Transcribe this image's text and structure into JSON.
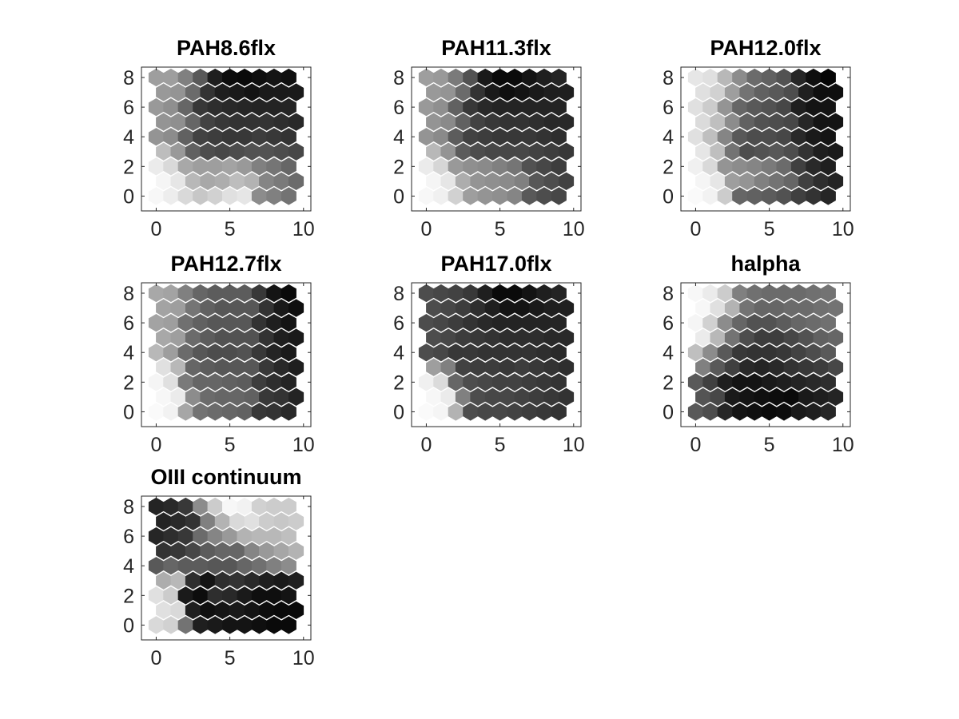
{
  "chart_data": [
    {
      "type": "heatmap",
      "title": "PAH8.6flx",
      "xlabel": "",
      "ylabel": "",
      "xlim": [
        -1,
        10.5
      ],
      "ylim": [
        -1,
        8.7
      ],
      "xticks": [
        0,
        5,
        10
      ],
      "yticks": [
        0,
        2,
        4,
        6,
        8
      ],
      "grid": false,
      "rows": 9,
      "cols": 10,
      "value_range": [
        0,
        1
      ],
      "values": [
        [
          0.97,
          0.93,
          0.85,
          0.78,
          0.82,
          0.88,
          0.9,
          0.55,
          0.5,
          0.45
        ],
        [
          0.96,
          0.9,
          0.72,
          0.66,
          0.68,
          0.74,
          0.7,
          0.52,
          0.48,
          0.42
        ],
        [
          0.92,
          0.85,
          0.66,
          0.62,
          0.62,
          0.64,
          0.6,
          0.5,
          0.46,
          0.4
        ],
        [
          0.74,
          0.6,
          0.38,
          0.3,
          0.28,
          0.3,
          0.32,
          0.32,
          0.3,
          0.28
        ],
        [
          0.58,
          0.55,
          0.38,
          0.26,
          0.24,
          0.22,
          0.22,
          0.24,
          0.22,
          0.2
        ],
        [
          0.58,
          0.56,
          0.4,
          0.26,
          0.22,
          0.2,
          0.2,
          0.2,
          0.18,
          0.16
        ],
        [
          0.6,
          0.56,
          0.4,
          0.22,
          0.18,
          0.16,
          0.15,
          0.14,
          0.14,
          0.14
        ],
        [
          0.6,
          0.58,
          0.42,
          0.2,
          0.12,
          0.1,
          0.08,
          0.1,
          0.1,
          0.1
        ],
        [
          0.62,
          0.62,
          0.5,
          0.35,
          0.12,
          0.05,
          0.04,
          0.06,
          0.08,
          0.06
        ]
      ]
    },
    {
      "type": "heatmap",
      "title": "PAH11.3flx",
      "xlabel": "",
      "ylabel": "",
      "xlim": [
        -1,
        10.5
      ],
      "ylim": [
        -1,
        8.7
      ],
      "xticks": [
        0,
        5,
        10
      ],
      "yticks": [
        0,
        2,
        4,
        6,
        8
      ],
      "grid": false,
      "rows": 9,
      "cols": 10,
      "value_range": [
        0,
        1
      ],
      "values": [
        [
          0.97,
          0.94,
          0.82,
          0.62,
          0.58,
          0.56,
          0.52,
          0.35,
          0.3,
          0.28
        ],
        [
          0.96,
          0.9,
          0.68,
          0.58,
          0.56,
          0.54,
          0.5,
          0.34,
          0.3,
          0.26
        ],
        [
          0.92,
          0.84,
          0.6,
          0.56,
          0.54,
          0.5,
          0.46,
          0.32,
          0.28,
          0.24
        ],
        [
          0.72,
          0.58,
          0.36,
          0.3,
          0.28,
          0.28,
          0.28,
          0.26,
          0.24,
          0.22
        ],
        [
          0.58,
          0.54,
          0.36,
          0.26,
          0.24,
          0.22,
          0.22,
          0.22,
          0.2,
          0.18
        ],
        [
          0.58,
          0.54,
          0.38,
          0.26,
          0.22,
          0.2,
          0.2,
          0.18,
          0.16,
          0.16
        ],
        [
          0.6,
          0.56,
          0.38,
          0.22,
          0.16,
          0.14,
          0.14,
          0.14,
          0.14,
          0.14
        ],
        [
          0.6,
          0.58,
          0.42,
          0.2,
          0.1,
          0.06,
          0.08,
          0.1,
          0.12,
          0.12
        ],
        [
          0.62,
          0.6,
          0.48,
          0.32,
          0.1,
          0.04,
          0.04,
          0.08,
          0.12,
          0.14
        ]
      ]
    },
    {
      "type": "heatmap",
      "title": "PAH12.0flx",
      "xlabel": "",
      "ylabel": "",
      "xlim": [
        -1,
        10.5
      ],
      "ylim": [
        -1,
        8.7
      ],
      "xticks": [
        0,
        5,
        10
      ],
      "yticks": [
        0,
        2,
        4,
        6,
        8
      ],
      "grid": false,
      "rows": 9,
      "cols": 10,
      "value_range": [
        0,
        1
      ],
      "values": [
        [
          0.98,
          0.95,
          0.8,
          0.4,
          0.38,
          0.36,
          0.32,
          0.25,
          0.2,
          0.15
        ],
        [
          0.96,
          0.9,
          0.62,
          0.58,
          0.5,
          0.45,
          0.4,
          0.25,
          0.18,
          0.14
        ],
        [
          0.94,
          0.85,
          0.58,
          0.55,
          0.52,
          0.48,
          0.42,
          0.25,
          0.16,
          0.12
        ],
        [
          0.9,
          0.75,
          0.45,
          0.3,
          0.32,
          0.34,
          0.3,
          0.2,
          0.12,
          0.1
        ],
        [
          0.88,
          0.75,
          0.52,
          0.35,
          0.3,
          0.3,
          0.28,
          0.16,
          0.1,
          0.08
        ],
        [
          0.86,
          0.75,
          0.55,
          0.38,
          0.32,
          0.3,
          0.28,
          0.15,
          0.08,
          0.08
        ],
        [
          0.88,
          0.8,
          0.58,
          0.4,
          0.35,
          0.32,
          0.28,
          0.12,
          0.08,
          0.08
        ],
        [
          0.88,
          0.82,
          0.62,
          0.45,
          0.38,
          0.35,
          0.3,
          0.12,
          0.06,
          0.06
        ],
        [
          0.9,
          0.88,
          0.72,
          0.55,
          0.42,
          0.38,
          0.32,
          0.15,
          0.06,
          0.02
        ]
      ]
    },
    {
      "type": "heatmap",
      "title": "PAH12.7flx",
      "xlabel": "",
      "ylabel": "",
      "xlim": [
        -1,
        10.5
      ],
      "ylim": [
        -1,
        8.7
      ],
      "xticks": [
        0,
        5,
        10
      ],
      "yticks": [
        0,
        2,
        4,
        6,
        8
      ],
      "grid": false,
      "rows": 9,
      "cols": 10,
      "value_range": [
        0,
        1
      ],
      "values": [
        [
          0.98,
          0.95,
          0.65,
          0.45,
          0.42,
          0.4,
          0.38,
          0.22,
          0.2,
          0.16
        ],
        [
          0.97,
          0.92,
          0.55,
          0.42,
          0.4,
          0.4,
          0.38,
          0.22,
          0.2,
          0.14
        ],
        [
          0.96,
          0.88,
          0.48,
          0.4,
          0.4,
          0.38,
          0.36,
          0.24,
          0.18,
          0.14
        ],
        [
          0.88,
          0.72,
          0.4,
          0.36,
          0.34,
          0.34,
          0.34,
          0.22,
          0.16,
          0.12
        ],
        [
          0.72,
          0.62,
          0.42,
          0.34,
          0.3,
          0.3,
          0.32,
          0.22,
          0.14,
          0.1
        ],
        [
          0.66,
          0.62,
          0.42,
          0.36,
          0.32,
          0.32,
          0.32,
          0.2,
          0.12,
          0.1
        ],
        [
          0.64,
          0.62,
          0.44,
          0.38,
          0.34,
          0.34,
          0.34,
          0.2,
          0.12,
          0.08
        ],
        [
          0.64,
          0.62,
          0.46,
          0.38,
          0.34,
          0.34,
          0.34,
          0.2,
          0.1,
          0.06
        ],
        [
          0.66,
          0.64,
          0.5,
          0.4,
          0.36,
          0.36,
          0.36,
          0.22,
          0.08,
          0.04
        ]
      ]
    },
    {
      "type": "heatmap",
      "title": "PAH17.0flx",
      "xlabel": "",
      "ylabel": "",
      "xlim": [
        -1,
        10.5
      ],
      "ylim": [
        -1,
        8.7
      ],
      "xticks": [
        0,
        5,
        10
      ],
      "yticks": [
        0,
        2,
        4,
        6,
        8
      ],
      "grid": false,
      "rows": 9,
      "cols": 10,
      "value_range": [
        0,
        1
      ],
      "values": [
        [
          0.98,
          0.96,
          0.7,
          0.3,
          0.28,
          0.28,
          0.26,
          0.24,
          0.22,
          0.2
        ],
        [
          0.97,
          0.92,
          0.5,
          0.3,
          0.28,
          0.28,
          0.26,
          0.24,
          0.22,
          0.2
        ],
        [
          0.94,
          0.86,
          0.4,
          0.3,
          0.28,
          0.26,
          0.26,
          0.24,
          0.22,
          0.2
        ],
        [
          0.62,
          0.5,
          0.26,
          0.24,
          0.24,
          0.22,
          0.24,
          0.22,
          0.2,
          0.18
        ],
        [
          0.3,
          0.28,
          0.22,
          0.22,
          0.2,
          0.2,
          0.2,
          0.2,
          0.18,
          0.16
        ],
        [
          0.3,
          0.28,
          0.24,
          0.22,
          0.2,
          0.18,
          0.18,
          0.18,
          0.16,
          0.16
        ],
        [
          0.3,
          0.28,
          0.24,
          0.2,
          0.16,
          0.14,
          0.14,
          0.14,
          0.14,
          0.14
        ],
        [
          0.3,
          0.28,
          0.24,
          0.18,
          0.12,
          0.08,
          0.08,
          0.1,
          0.12,
          0.12
        ],
        [
          0.3,
          0.28,
          0.26,
          0.22,
          0.12,
          0.04,
          0.04,
          0.08,
          0.12,
          0.14
        ]
      ]
    },
    {
      "type": "heatmap",
      "title": "halpha",
      "xlabel": "",
      "ylabel": "",
      "xlim": [
        -1,
        10.5
      ],
      "ylim": [
        -1,
        8.7
      ],
      "xticks": [
        0,
        5,
        10
      ],
      "yticks": [
        0,
        2,
        4,
        6,
        8
      ],
      "grid": false,
      "rows": 9,
      "cols": 10,
      "value_range": [
        0,
        1
      ],
      "values": [
        [
          0.35,
          0.3,
          0.15,
          0.08,
          0.06,
          0.04,
          0.05,
          0.1,
          0.12,
          0.15
        ],
        [
          0.33,
          0.28,
          0.1,
          0.08,
          0.06,
          0.05,
          0.04,
          0.1,
          0.12,
          0.14
        ],
        [
          0.35,
          0.25,
          0.12,
          0.08,
          0.08,
          0.1,
          0.12,
          0.14,
          0.16,
          0.18
        ],
        [
          0.5,
          0.35,
          0.25,
          0.16,
          0.14,
          0.16,
          0.2,
          0.22,
          0.24,
          0.28
        ],
        [
          0.75,
          0.55,
          0.35,
          0.22,
          0.2,
          0.2,
          0.22,
          0.26,
          0.3,
          0.35
        ],
        [
          0.92,
          0.72,
          0.45,
          0.3,
          0.24,
          0.24,
          0.28,
          0.32,
          0.38,
          0.4
        ],
        [
          0.96,
          0.82,
          0.55,
          0.4,
          0.32,
          0.32,
          0.36,
          0.4,
          0.42,
          0.44
        ],
        [
          0.97,
          0.88,
          0.7,
          0.45,
          0.4,
          0.4,
          0.42,
          0.42,
          0.44,
          0.45
        ],
        [
          0.97,
          0.92,
          0.8,
          0.5,
          0.44,
          0.42,
          0.42,
          0.42,
          0.44,
          0.45
        ]
      ]
    },
    {
      "type": "heatmap",
      "title": "OIII continuum",
      "xlabel": "",
      "ylabel": "",
      "xlim": [
        -1,
        10.5
      ],
      "ylim": [
        -1,
        8.7
      ],
      "xticks": [
        0,
        5,
        10
      ],
      "yticks": [
        0,
        2,
        4,
        6,
        8
      ],
      "grid": false,
      "rows": 9,
      "cols": 10,
      "value_range": [
        0,
        1
      ],
      "values": [
        [
          0.85,
          0.82,
          0.45,
          0.12,
          0.1,
          0.08,
          0.08,
          0.06,
          0.04,
          0.04
        ],
        [
          0.88,
          0.85,
          0.12,
          0.06,
          0.08,
          0.1,
          0.08,
          0.05,
          0.04,
          0.04
        ],
        [
          0.88,
          0.8,
          0.1,
          0.05,
          0.18,
          0.16,
          0.1,
          0.06,
          0.06,
          0.08
        ],
        [
          0.68,
          0.72,
          0.18,
          0.08,
          0.18,
          0.2,
          0.16,
          0.12,
          0.1,
          0.12
        ],
        [
          0.35,
          0.4,
          0.36,
          0.36,
          0.34,
          0.34,
          0.4,
          0.44,
          0.5,
          0.55
        ],
        [
          0.2,
          0.22,
          0.28,
          0.36,
          0.4,
          0.4,
          0.52,
          0.6,
          0.65,
          0.7
        ],
        [
          0.15,
          0.18,
          0.22,
          0.42,
          0.52,
          0.6,
          0.7,
          0.72,
          0.72,
          0.75
        ],
        [
          0.14,
          0.16,
          0.2,
          0.5,
          0.7,
          0.85,
          0.88,
          0.8,
          0.78,
          0.8
        ],
        [
          0.14,
          0.16,
          0.22,
          0.55,
          0.8,
          0.97,
          0.95,
          0.82,
          0.8,
          0.8
        ]
      ]
    }
  ]
}
